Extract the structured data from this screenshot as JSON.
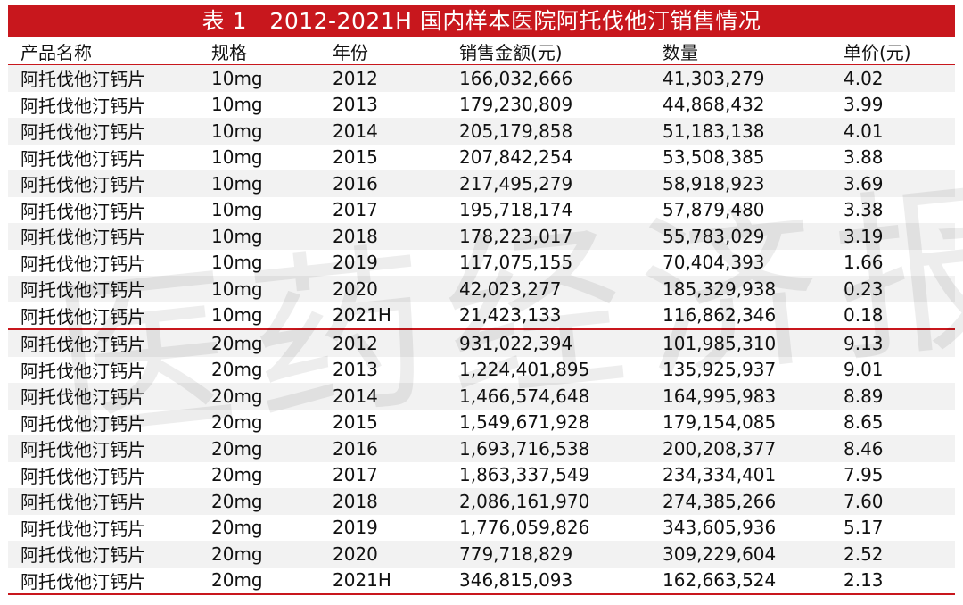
{
  "title": "表 1　2012-2021H 国内样本医院阿托伐他汀销售情况",
  "columns": [
    "产品名称",
    "规格",
    "年份",
    "销售金额(元)",
    "数量",
    "单价(元)"
  ],
  "rows": [
    [
      "阿托伐他汀钙片",
      "10mg",
      "2012",
      "166,032,666",
      "41,303,279",
      "4.02"
    ],
    [
      "阿托伐他汀钙片",
      "10mg",
      "2013",
      "179,230,809",
      "44,868,432",
      "3.99"
    ],
    [
      "阿托伐他汀钙片",
      "10mg",
      "2014",
      "205,179,858",
      "51,183,138",
      "4.01"
    ],
    [
      "阿托伐他汀钙片",
      "10mg",
      "2015",
      "207,842,254",
      "53,508,385",
      "3.88"
    ],
    [
      "阿托伐他汀钙片",
      "10mg",
      "2016",
      "217,495,279",
      "58,918,923",
      "3.69"
    ],
    [
      "阿托伐他汀钙片",
      "10mg",
      "2017",
      "195,718,174",
      "57,879,480",
      "3.38"
    ],
    [
      "阿托伐他汀钙片",
      "10mg",
      "2018",
      "178,223,017",
      "55,783,029",
      "3.19"
    ],
    [
      "阿托伐他汀钙片",
      "10mg",
      "2019",
      "117,075,155",
      "70,404,393",
      "1.66"
    ],
    [
      "阿托伐他汀钙片",
      "10mg",
      "2020",
      "42,023,277",
      "185,329,938",
      "0.23"
    ],
    [
      "阿托伐他汀钙片",
      "10mg",
      "2021H",
      "21,423,133",
      "116,862,346",
      "0.18"
    ],
    [
      "阿托伐他汀钙片",
      "20mg",
      "2012",
      "931,022,394",
      "101,985,310",
      "9.13"
    ],
    [
      "阿托伐他汀钙片",
      "20mg",
      "2013",
      "1,224,401,895",
      "135,925,937",
      "9.01"
    ],
    [
      "阿托伐他汀钙片",
      "20mg",
      "2014",
      "1,466,574,648",
      "164,995,983",
      "8.89"
    ],
    [
      "阿托伐他汀钙片",
      "20mg",
      "2015",
      "1,549,671,928",
      "179,154,085",
      "8.65"
    ],
    [
      "阿托伐他汀钙片",
      "20mg",
      "2016",
      "1,693,716,538",
      "200,208,377",
      "8.46"
    ],
    [
      "阿托伐他汀钙片",
      "20mg",
      "2017",
      "1,863,337,549",
      "234,334,401",
      "7.95"
    ],
    [
      "阿托伐他汀钙片",
      "20mg",
      "2018",
      "2,086,161,970",
      "274,385,266",
      "7.60"
    ],
    [
      "阿托伐他汀钙片",
      "20mg",
      "2019",
      "1,776,059,826",
      "343,605,936",
      "5.17"
    ],
    [
      "阿托伐他汀钙片",
      "20mg",
      "2020",
      "779,718,829",
      "309,229,604",
      "2.52"
    ],
    [
      "阿托伐他汀钙片",
      "20mg",
      "2021H",
      "346,815,093",
      "162,663,524",
      "2.13"
    ]
  ],
  "watermark": "医药经济报",
  "colors": {
    "accent": "#c8171d",
    "stripe": "#f2f2f2"
  }
}
